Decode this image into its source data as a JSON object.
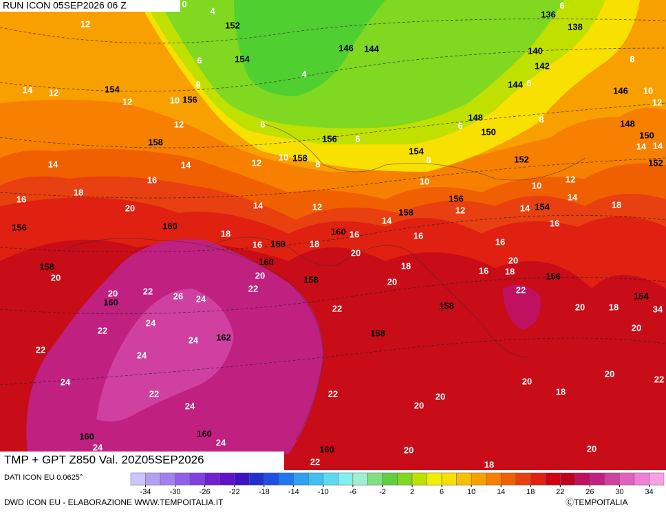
{
  "header": {
    "run": "RUN ICON 05SEP2026 06 Z"
  },
  "map": {
    "title": "TMP + GPT Z850 Val. 20Z05SEP2026",
    "geopotential_labels": [
      152,
      146,
      144,
      136,
      138,
      140,
      142,
      154,
      154,
      156,
      144,
      146,
      148,
      150,
      148,
      150,
      158,
      156,
      158,
      154,
      152,
      152,
      156,
      154,
      158,
      160,
      160,
      156,
      160,
      160,
      158,
      158,
      156,
      154,
      160,
      158,
      162,
      158,
      160,
      160,
      160
    ],
    "temperature_labels": [
      12,
      4,
      0,
      6,
      14,
      12,
      12,
      10,
      6,
      8,
      4,
      6,
      8,
      10,
      12,
      12,
      6,
      6,
      6,
      8,
      14,
      14,
      14,
      14,
      12,
      10,
      8,
      8,
      16,
      18,
      16,
      10,
      10,
      12,
      14,
      12,
      12,
      14,
      14,
      18,
      20,
      14,
      16,
      16,
      16,
      18,
      16,
      18,
      16,
      20,
      20,
      18,
      16,
      18,
      20,
      20,
      22,
      20,
      22,
      20,
      22,
      26,
      24,
      22,
      20,
      18,
      20,
      34,
      22,
      24,
      24,
      24,
      22,
      24,
      22,
      22,
      20,
      20,
      22,
      20,
      20,
      18,
      24,
      24,
      24,
      20,
      20,
      22,
      18
    ]
  },
  "legend": {
    "colors": [
      "#c8c8ff",
      "#b4a0f0",
      "#a080f0",
      "#9060e8",
      "#8040e0",
      "#7020d0",
      "#6010c8",
      "#4010c8",
      "#2030d0",
      "#2050e0",
      "#2078f0",
      "#30a0f0",
      "#40c0f0",
      "#60d8f0",
      "#80f0f0",
      "#a0f0d0",
      "#80e080",
      "#60d040",
      "#80d820",
      "#c0e000",
      "#f0f000",
      "#f8e000",
      "#f8c000",
      "#f8a000",
      "#f88000",
      "#f06000",
      "#e84010",
      "#e02010",
      "#d00010",
      "#c00020",
      "#c01060",
      "#c02080",
      "#d040a0",
      "#e060c0",
      "#f080d8",
      "#f8a0e8"
    ],
    "ticks": [
      -34,
      -30,
      -26,
      -22,
      -18,
      -14,
      -10,
      -6,
      -2,
      2,
      6,
      10,
      14,
      18,
      22,
      26,
      30,
      34
    ]
  },
  "footer": {
    "source": "DATI ICON EU 0.0625°",
    "credit": "DWD ICON EU - ELABORAZIONE WWW.TEMPOITALIA.IT",
    "copyright": "ⒸTEMPOITALIA"
  }
}
